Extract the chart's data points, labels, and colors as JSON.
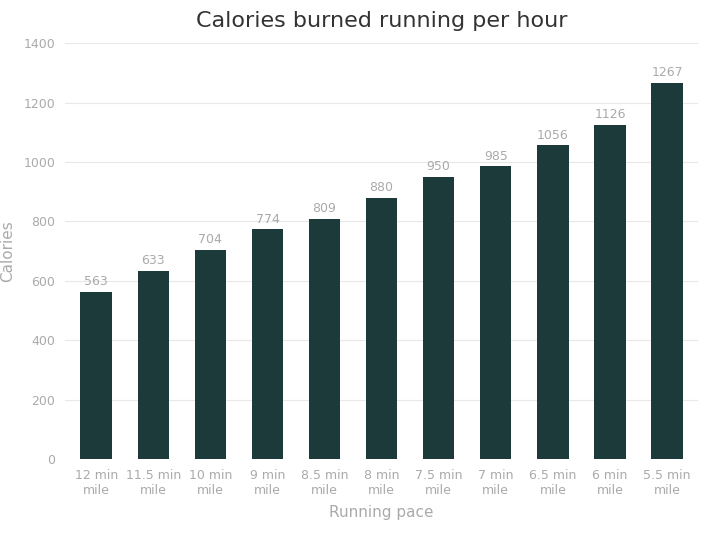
{
  "title": "Calories burned running per hour",
  "xlabel": "Running pace",
  "ylabel": "Calories",
  "categories": [
    "12 min\nmile",
    "11.5 min\nmile",
    "10 min\nmile",
    "9 min\nmile",
    "8.5 min\nmile",
    "8 min\nmile",
    "7.5 min\nmile",
    "7 min\nmile",
    "6.5 min\nmile",
    "6 min\nmile",
    "5.5 min\nmile"
  ],
  "values": [
    563,
    633,
    704,
    774,
    809,
    880,
    950,
    985,
    1056,
    1126,
    1267
  ],
  "bar_color": "#1c3a3a",
  "label_color": "#aaaaaa",
  "background_color": "#ffffff",
  "ylim": [
    0,
    1400
  ],
  "yticks": [
    0,
    200,
    400,
    600,
    800,
    1000,
    1200,
    1400
  ],
  "title_fontsize": 16,
  "axis_label_fontsize": 11,
  "tick_label_fontsize": 9,
  "value_label_fontsize": 9,
  "bar_width": 0.55
}
